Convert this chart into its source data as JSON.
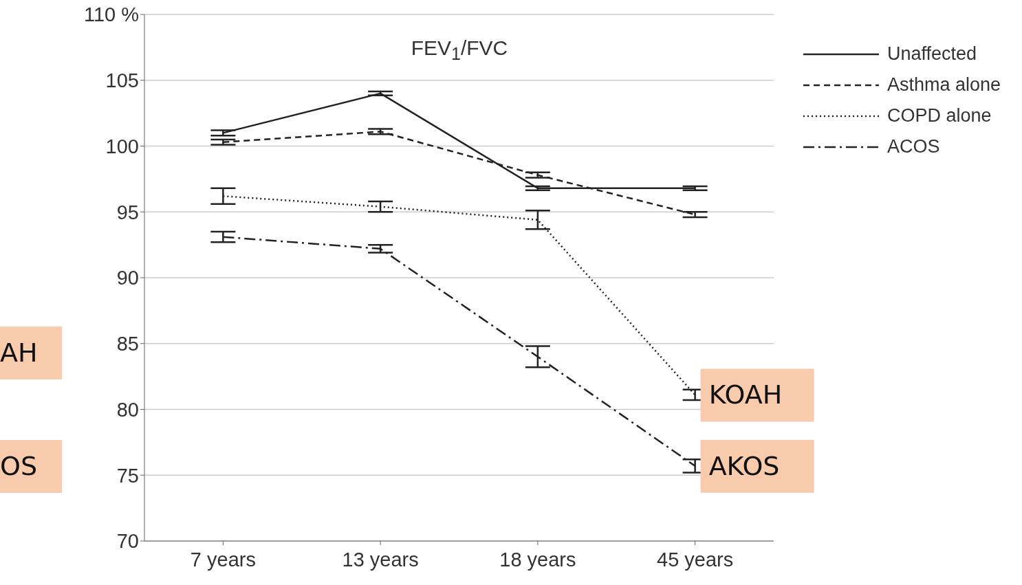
{
  "chart_data": {
    "type": "line",
    "title": "FEV$_{1}$/FVC",
    "categories": [
      "7 years",
      "13 years",
      "18 years",
      "45 years"
    ],
    "series": [
      {
        "name": "Unaffected",
        "color": "#222222",
        "line_style": "solid",
        "values": [
          101.0,
          104.0,
          96.8,
          96.8
        ],
        "errors": [
          0.2,
          0.15,
          0.15,
          0.15
        ]
      },
      {
        "name": "Asthma alone",
        "color": "#222222",
        "line_style": "dashed",
        "values": [
          100.3,
          101.1,
          97.8,
          94.8
        ],
        "errors": [
          0.2,
          0.2,
          0.2,
          0.2
        ]
      },
      {
        "name": "COPD alone",
        "color": "#222222",
        "line_style": "dotted",
        "values": [
          96.2,
          95.4,
          94.4,
          81.1
        ],
        "errors": [
          0.6,
          0.4,
          0.7,
          0.4
        ]
      },
      {
        "name": "ACOS",
        "color": "#222222",
        "line_style": "dashdot",
        "values": [
          93.1,
          92.2,
          84.0,
          75.7
        ],
        "errors": [
          0.4,
          0.3,
          0.8,
          0.5
        ]
      }
    ],
    "ylim": [
      70,
      110
    ],
    "yticks": [
      70,
      75,
      80,
      85,
      90,
      95,
      100,
      105,
      {
        "value": 110,
        "label": "110 %"
      }
    ],
    "grid": "y",
    "legend": "top right",
    "marker": "none",
    "annotations": [
      {
        "text": "KOAH",
        "x": "45 years",
        "y": 81.1
      },
      {
        "text": "AKOS",
        "x": "45 years",
        "y": 75.7
      },
      "AH",
      "OS"
    ]
  }
}
